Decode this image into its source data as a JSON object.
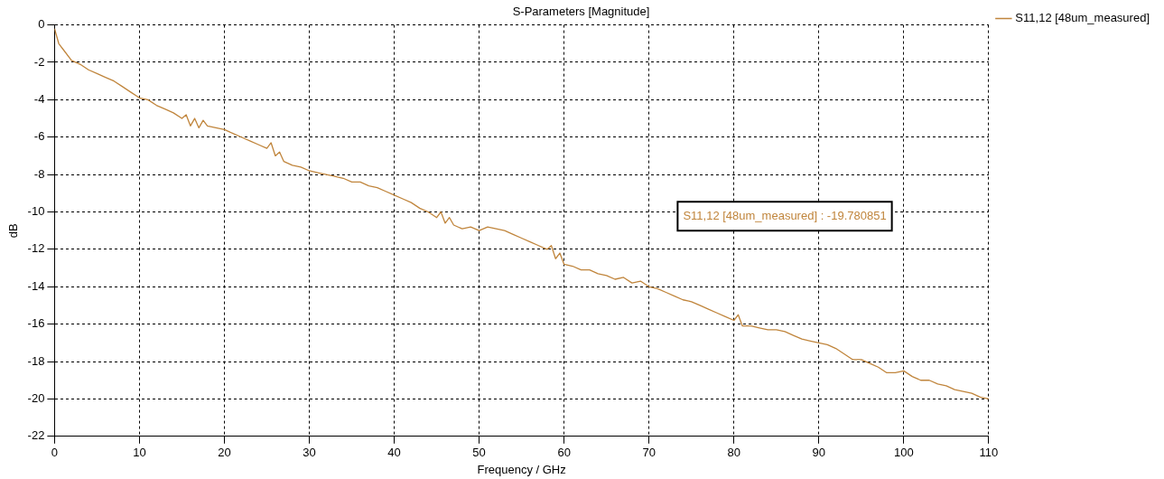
{
  "chart_data": {
    "type": "line",
    "title": "S-Parameters [Magnitude]",
    "xlabel": "Frequency / GHz",
    "ylabel": "dB",
    "xlim": [
      0,
      110
    ],
    "xticks": [
      0,
      10,
      20,
      30,
      40,
      50,
      60,
      70,
      80,
      90,
      100,
      110
    ],
    "ylim": [
      -22,
      0
    ],
    "yticks": [
      -22,
      -20,
      -18,
      -16,
      -14,
      -12,
      -10,
      -8,
      -6,
      -4,
      -2,
      0
    ],
    "grid": true,
    "legend": "top right",
    "marker": "none",
    "line_style": "solid",
    "annotations": [
      "S11,12 [48um_measured] : -19.780851"
    ],
    "series": [
      {
        "name": "S11,12 [48um_measured]",
        "color": "#c0853c",
        "x": [
          0,
          0.5,
          1,
          2,
          3,
          4,
          5,
          6,
          7,
          8,
          9,
          10,
          11,
          12,
          13,
          14,
          15,
          15.5,
          16,
          16.5,
          17,
          17.5,
          18,
          19,
          20,
          21,
          22,
          23,
          24,
          25,
          25.5,
          26,
          26.5,
          27,
          28,
          29,
          30,
          31,
          32,
          33,
          34,
          35,
          36,
          37,
          38,
          39,
          40,
          41,
          42,
          43,
          44,
          45,
          45.5,
          46,
          46.5,
          47,
          48,
          49,
          50,
          51,
          52,
          53,
          54,
          55,
          56,
          57,
          58,
          58.5,
          59,
          59.5,
          60,
          61,
          62,
          63,
          64,
          65,
          66,
          67,
          68,
          69,
          70,
          71,
          72,
          73,
          74,
          75,
          76,
          77,
          78,
          79,
          80,
          80.5,
          81,
          82,
          83,
          84,
          85,
          86,
          87,
          88,
          89,
          90,
          91,
          92,
          93,
          94,
          95,
          96,
          97,
          98,
          99,
          100,
          101,
          102,
          103,
          104,
          105,
          106,
          107,
          108,
          109,
          110
        ],
        "values": [
          -0.2,
          -1.0,
          -1.3,
          -1.9,
          -2.1,
          -2.4,
          -2.6,
          -2.8,
          -3.0,
          -3.3,
          -3.6,
          -3.9,
          -4.0,
          -4.3,
          -4.5,
          -4.7,
          -5.0,
          -4.8,
          -5.4,
          -5.0,
          -5.5,
          -5.1,
          -5.4,
          -5.5,
          -5.6,
          -5.8,
          -6.0,
          -6.2,
          -6.4,
          -6.6,
          -6.3,
          -7.0,
          -6.8,
          -7.3,
          -7.5,
          -7.6,
          -7.8,
          -7.9,
          -8.0,
          -8.1,
          -8.2,
          -8.4,
          -8.4,
          -8.6,
          -8.7,
          -8.9,
          -9.1,
          -9.3,
          -9.5,
          -9.8,
          -10.0,
          -10.3,
          -10.0,
          -10.6,
          -10.3,
          -10.7,
          -10.9,
          -10.8,
          -11.0,
          -10.8,
          -10.9,
          -11.0,
          -11.2,
          -11.4,
          -11.6,
          -11.8,
          -12.0,
          -11.8,
          -12.5,
          -12.2,
          -12.8,
          -12.9,
          -13.1,
          -13.1,
          -13.3,
          -13.4,
          -13.6,
          -13.5,
          -13.8,
          -13.7,
          -14.0,
          -14.1,
          -14.3,
          -14.5,
          -14.7,
          -14.8,
          -15.0,
          -15.2,
          -15.4,
          -15.6,
          -15.8,
          -15.5,
          -16.1,
          -16.1,
          -16.2,
          -16.3,
          -16.3,
          -16.4,
          -16.6,
          -16.8,
          -16.9,
          -17.0,
          -17.1,
          -17.3,
          -17.6,
          -17.9,
          -17.9,
          -18.1,
          -18.3,
          -18.6,
          -18.6,
          -18.5,
          -18.8,
          -19.0,
          -19.0,
          -19.2,
          -19.3,
          -19.5,
          -19.6,
          -19.7,
          -19.9,
          -20.0
        ]
      }
    ]
  }
}
